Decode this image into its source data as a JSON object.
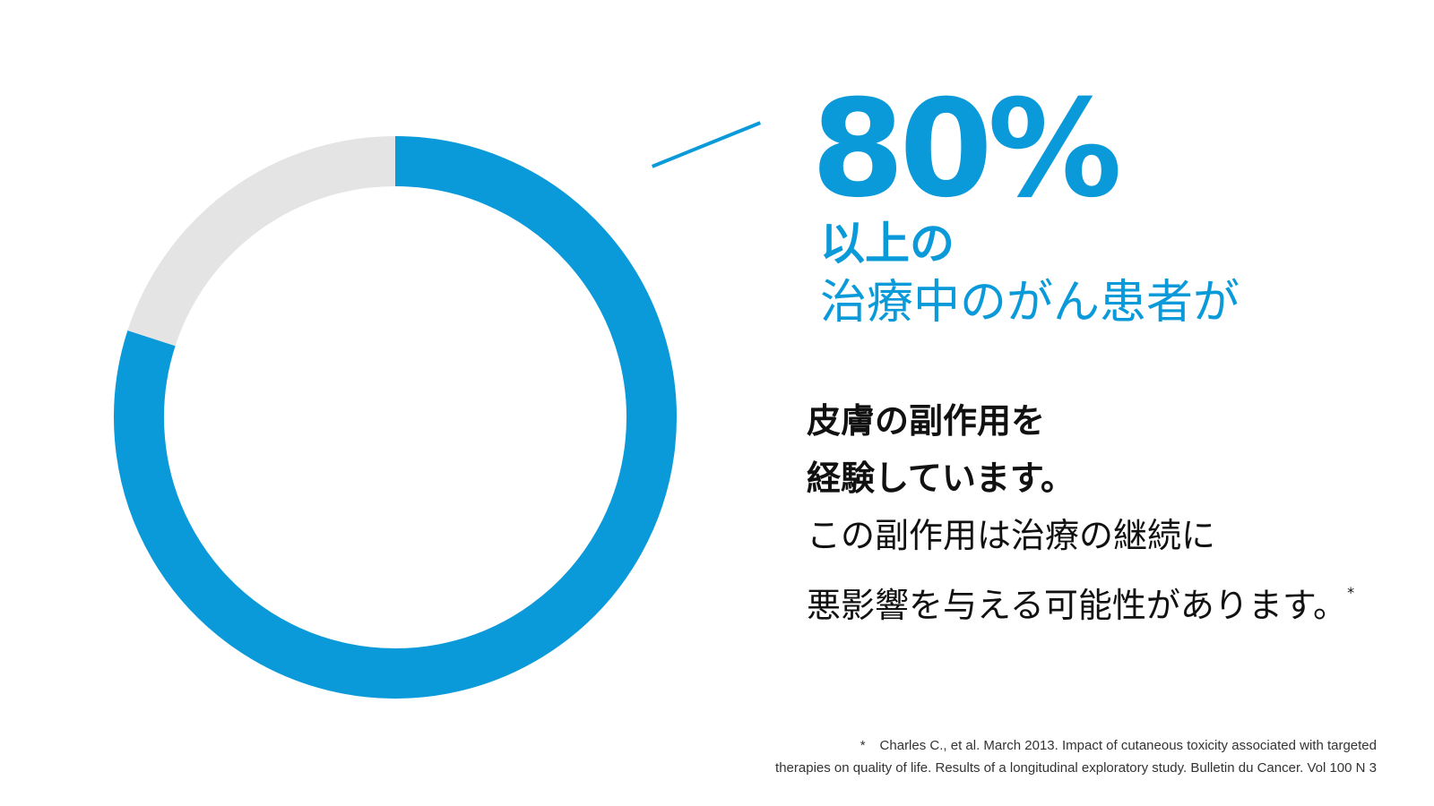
{
  "chart_data": {
    "type": "pie",
    "donut": true,
    "title": "",
    "values": [
      80,
      20
    ],
    "colors": [
      "#0a9ad9",
      "#e4e4e4"
    ],
    "ylim": [
      0,
      100
    ]
  },
  "colors": {
    "accent": "#0a9ad9",
    "track": "#e4e4e4",
    "text": "#111111"
  },
  "headline": {
    "percent": "80%",
    "line1": "以上の",
    "line2": "治療中のがん患者が"
  },
  "body": {
    "line1": "皮膚の副作用を",
    "line2": "経験しています。",
    "line3": "この副作用は治療の継続に",
    "line4": "悪影響を与える可能性があります。",
    "footnote_marker": "*"
  },
  "footnote": {
    "mark": "*",
    "line1": "Charles C., et al. March 2013. Impact of cutaneous toxicity associated with targeted",
    "line2": "therapies on quality of life. Results of a longitudinal exploratory study. Bulletin du Cancer. Vol 100 N 3"
  }
}
